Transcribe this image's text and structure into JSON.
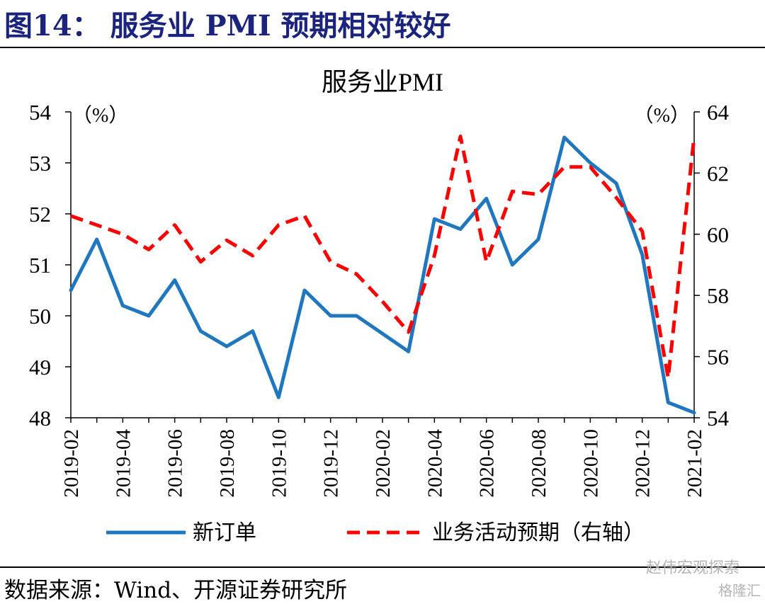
{
  "header": {
    "figure_title": "图14：  服务业 PMI 预期相对较好"
  },
  "footer": {
    "source": "数据来源：Wind、开源证券研究所",
    "watermark": "赵伟宏观探索",
    "watermark2": "格隆汇"
  },
  "chart_data": {
    "type": "line",
    "title": "服务业PMI",
    "left_unit": "（%）",
    "right_unit": "（%）",
    "x": [
      "2019-02",
      "2019-03",
      "2019-04",
      "2019-05",
      "2019-06",
      "2019-07",
      "2019-08",
      "2019-09",
      "2019-10",
      "2019-11",
      "2019-12",
      "2020-01",
      "2020-02",
      "2020-03",
      "2020-04",
      "2020-05",
      "2020-06",
      "2020-07",
      "2020-08",
      "2020-09",
      "2020-10",
      "2020-11",
      "2020-12",
      "2021-01",
      "2021-02"
    ],
    "x_tick_labels": [
      "2019-02",
      "2019-04",
      "2019-06",
      "2019-08",
      "2019-10",
      "2019-12",
      "2020-02",
      "2020-04",
      "2020-06",
      "2020-08",
      "2020-10",
      "2020-12",
      "2021-02"
    ],
    "y_left": {
      "min": 48,
      "max": 54,
      "ticks": [
        48,
        49,
        50,
        51,
        52,
        53,
        54
      ]
    },
    "y_right": {
      "min": 54,
      "max": 64,
      "ticks": [
        54,
        56,
        58,
        60,
        62,
        64
      ]
    },
    "series": [
      {
        "name": "新订单",
        "axis": "left",
        "color": "#1f77c0",
        "style": "solid",
        "values": [
          50.5,
          51.5,
          50.2,
          50.0,
          50.7,
          49.7,
          49.4,
          49.7,
          48.4,
          50.5,
          50.0,
          50.0,
          49.65,
          49.3,
          51.9,
          51.7,
          52.3,
          51.0,
          51.5,
          53.5,
          53.0,
          52.6,
          51.2,
          48.3,
          48.1
        ]
      },
      {
        "name": "业务活动预期（右轴）",
        "axis": "right",
        "color": "#ff0000",
        "style": "dashed",
        "values": [
          60.6,
          60.3,
          60.0,
          59.5,
          60.3,
          59.1,
          59.8,
          59.3,
          60.3,
          60.6,
          59.1,
          58.7,
          57.8,
          56.8,
          59.3,
          63.2,
          59.1,
          61.4,
          61.3,
          62.2,
          62.2,
          61.2,
          60.1,
          55.3,
          63.2
        ]
      }
    ]
  }
}
